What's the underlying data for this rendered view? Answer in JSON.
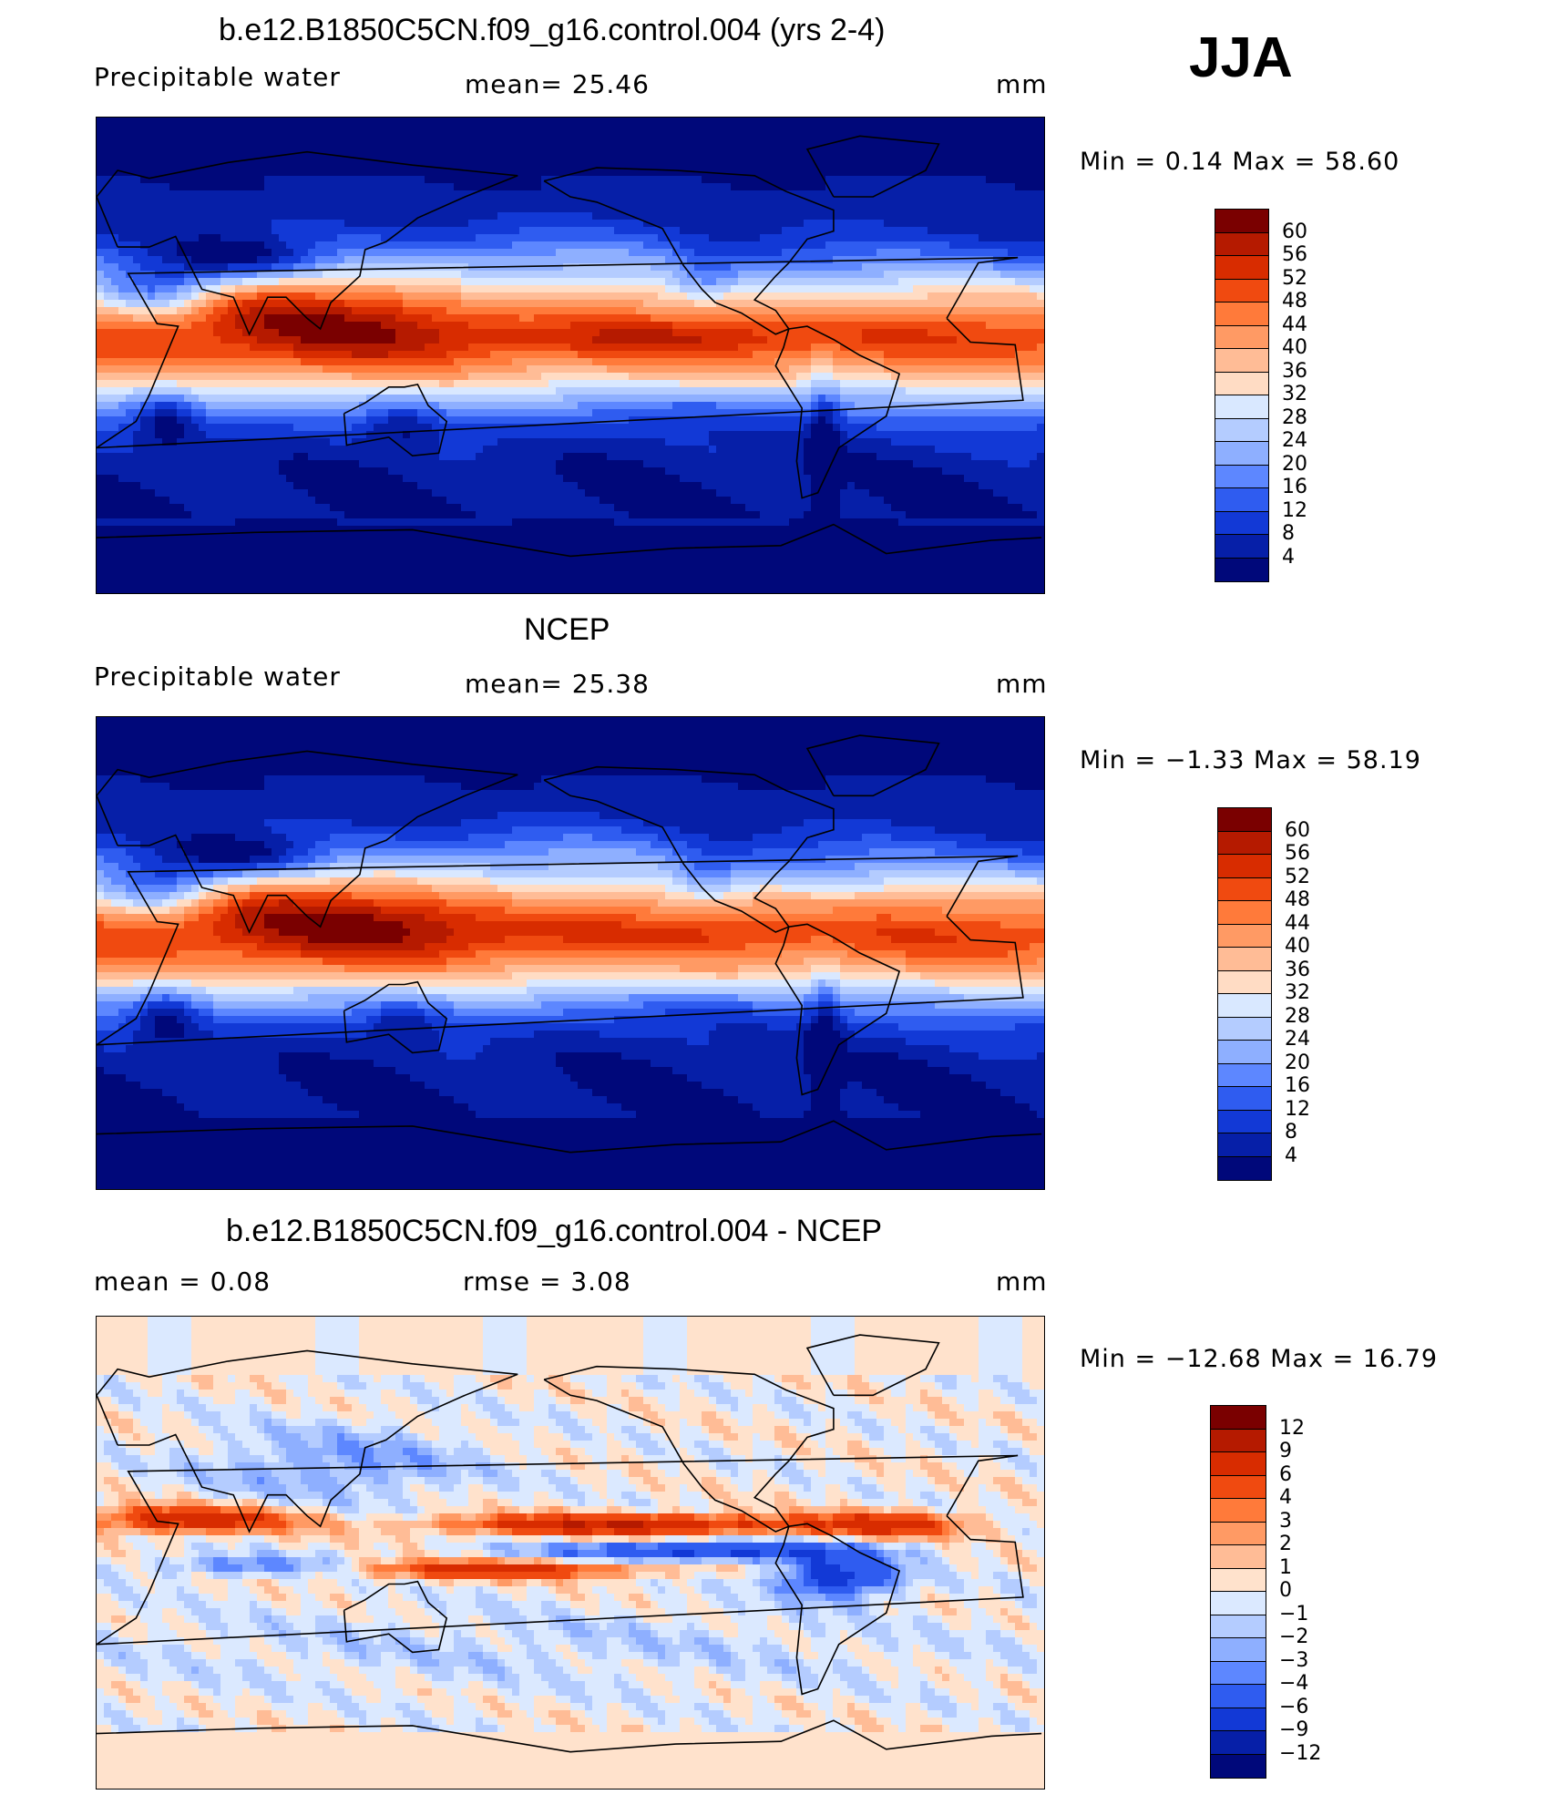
{
  "season": "JJA",
  "panels": [
    {
      "title": "b.e12.B1850C5CN.f09_g16.control.004 (yrs 2-4)",
      "variable": "Precipitable  water",
      "stat1": "mean=   25.46",
      "units": "mm",
      "minmax": "Min  =     0.14  Max  =    58.60",
      "colorbar": {
        "labels": [
          "60",
          "56",
          "52",
          "48",
          "44",
          "40",
          "36",
          "32",
          "28",
          "24",
          "20",
          "16",
          "12",
          "8",
          "4"
        ],
        "colors": [
          "#7a0000",
          "#b51a00",
          "#d82c00",
          "#f04a10",
          "#ff7a3a",
          "#ff9a64",
          "#ffbc96",
          "#ffdcc4",
          "#d9e8ff",
          "#b4ccff",
          "#8eafff",
          "#5d87ff",
          "#2f5cf0",
          "#1239d6",
          "#061fa8",
          "#00087a"
        ]
      }
    },
    {
      "title": "NCEP",
      "variable": "Precipitable  water",
      "stat1": "mean=   25.38",
      "units": "mm",
      "minmax": "Min  =   −1.33  Max  =    58.19",
      "colorbar": {
        "labels": [
          "60",
          "56",
          "52",
          "48",
          "44",
          "40",
          "36",
          "32",
          "28",
          "24",
          "20",
          "16",
          "12",
          "8",
          "4"
        ],
        "colors": [
          "#7a0000",
          "#b51a00",
          "#d82c00",
          "#f04a10",
          "#ff7a3a",
          "#ff9a64",
          "#ffbc96",
          "#ffdcc4",
          "#d9e8ff",
          "#b4ccff",
          "#8eafff",
          "#5d87ff",
          "#2f5cf0",
          "#1239d6",
          "#061fa8",
          "#00087a"
        ]
      }
    },
    {
      "title": "b.e12.B1850C5CN.f09_g16.control.004 - NCEP",
      "stat1": "mean  =      0.08",
      "stat2": "rmse  =      3.08",
      "units": "mm",
      "minmax": "Min  =  −12.68  Max  =    16.79",
      "colorbar": {
        "labels": [
          "12",
          "9",
          "6",
          "4",
          "3",
          "2",
          "1",
          "0",
          "−1",
          "−2",
          "−3",
          "−4",
          "−6",
          "−9",
          "−12"
        ],
        "colors": [
          "#7a0000",
          "#b51a00",
          "#d82c00",
          "#f04a10",
          "#ff7a3a",
          "#ff9a64",
          "#ffbc96",
          "#ffe2cc",
          "#dbe9ff",
          "#b4ccff",
          "#8eafff",
          "#5d87ff",
          "#2f5cf0",
          "#1239d6",
          "#061fa8",
          "#00087a"
        ]
      }
    }
  ]
}
